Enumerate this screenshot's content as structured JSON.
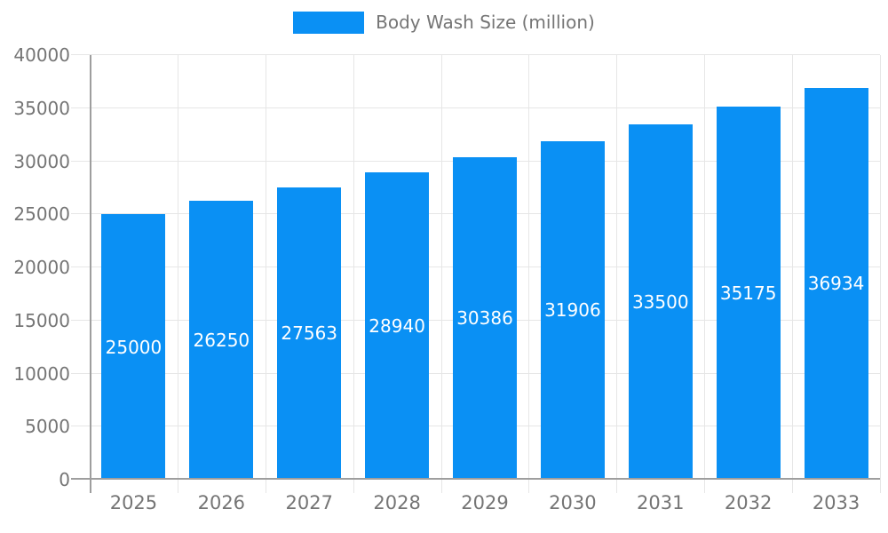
{
  "legend": {
    "label": "Body Wash Size (million)"
  },
  "colors": {
    "background": "#ffffff",
    "bar": "#0a90f4",
    "grid": "#e6e6e6",
    "axis": "#9e9e9e",
    "tick_text": "#757575",
    "value_text": "#ffffff"
  },
  "chart_data": {
    "type": "bar",
    "title": "",
    "xlabel": "",
    "ylabel": "",
    "legend_entries": [
      "Body Wash Size (million)"
    ],
    "legend_position": "top-center",
    "grid": true,
    "categories": [
      "2025",
      "2026",
      "2027",
      "2028",
      "2029",
      "2030",
      "2031",
      "2032",
      "2033"
    ],
    "series": [
      {
        "name": "Body Wash Size (million)",
        "values": [
          25000,
          26250,
          27563,
          28940,
          30386,
          31906,
          33500,
          35175,
          36934
        ]
      }
    ],
    "value_labels": "inside-center-white",
    "ylim": [
      0,
      40000
    ],
    "ytick_step": 5000,
    "ytick_labels": [
      "0",
      "5000",
      "10000",
      "15000",
      "20000",
      "25000",
      "30000",
      "35000",
      "40000"
    ]
  }
}
